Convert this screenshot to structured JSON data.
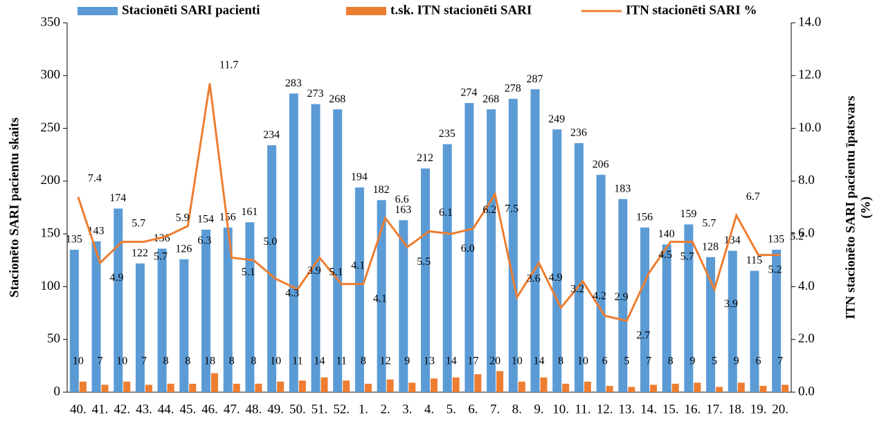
{
  "chart_data": {
    "type": "bar",
    "y_label": "Stacionēto SARI pacientu skaits",
    "y2_label": [
      "ITN stacionēto SARI pacientu īpatsvars",
      "(%)"
    ],
    "categories": [
      "40.",
      "41.",
      "42.",
      "43.",
      "44.",
      "45.",
      "46.",
      "47.",
      "48.",
      "49.",
      "50.",
      "51.",
      "52.",
      "1.",
      "2.",
      "3.",
      "4.",
      "5.",
      "6.",
      "7.",
      "8.",
      "9.",
      "10.",
      "11.",
      "12.",
      "13.",
      "14.",
      "15.",
      "16.",
      "17.",
      "18.",
      "19.",
      "20."
    ],
    "series": [
      {
        "name": "Stacionēti SARI pacienti",
        "type": "bar",
        "color": "#5b9bd5",
        "values": [
          135,
          143,
          174,
          122,
          136,
          126,
          154,
          156,
          161,
          234,
          283,
          273,
          268,
          194,
          182,
          163,
          212,
          235,
          274,
          268,
          278,
          287,
          249,
          236,
          206,
          183,
          156,
          140,
          159,
          128,
          134,
          115,
          135
        ]
      },
      {
        "name": "t.sk. ITN stacionēti SARI",
        "type": "bar",
        "color": "#ed7d31",
        "values": [
          10,
          7,
          10,
          7,
          8,
          8,
          18,
          8,
          8,
          10,
          11,
          14,
          11,
          8,
          12,
          9,
          13,
          14,
          17,
          20,
          10,
          14,
          8,
          10,
          6,
          5,
          7,
          8,
          9,
          5,
          9,
          6,
          7
        ]
      },
      {
        "name": "ITN stacionēti SARI %",
        "type": "line",
        "axis": "y2",
        "color": "#ed7d31",
        "values": [
          7.4,
          4.9,
          5.7,
          5.7,
          5.9,
          6.3,
          11.7,
          5.1,
          5.0,
          4.3,
          3.9,
          5.1,
          4.1,
          4.1,
          6.6,
          5.5,
          6.1,
          6.0,
          6.2,
          7.5,
          3.6,
          4.9,
          3.2,
          4.2,
          2.9,
          2.7,
          4.5,
          5.7,
          5.7,
          3.9,
          6.7,
          5.2,
          5.2
        ],
        "value_labels": [
          "7.4",
          "4.9",
          "5.7",
          "5.7",
          "5.9",
          "6.3",
          "11.7",
          "5.1",
          "5.0",
          "4.3",
          "3.9",
          "5.1",
          "4.1",
          "4.1",
          "6.6",
          "5.5",
          "6.1",
          "6.0",
          "6.2",
          "7.5",
          "3.6",
          "4.9",
          "3.2",
          "4.2",
          "2.9",
          "2.7",
          "4.5",
          "5.7",
          "5.7",
          "3.9",
          "6.7",
          "5.2",
          "5.2"
        ]
      }
    ],
    "ylim": [
      0,
      350
    ],
    "yticks": [
      0,
      50,
      100,
      150,
      200,
      250,
      300,
      350
    ],
    "y2lim": [
      0,
      14
    ],
    "y2ticks": [
      {
        "value": 0,
        "label": "0.0"
      },
      {
        "value": 2,
        "label": "2.0"
      },
      {
        "value": 4,
        "label": "4.0"
      },
      {
        "value": 6,
        "label": "6.0"
      },
      {
        "value": 8,
        "label": "8.0"
      },
      {
        "value": 10,
        "label": "10.0"
      },
      {
        "value": 12,
        "label": "12.0"
      },
      {
        "value": 14,
        "label": "14.0"
      }
    ],
    "grid": false,
    "legend": "top"
  }
}
